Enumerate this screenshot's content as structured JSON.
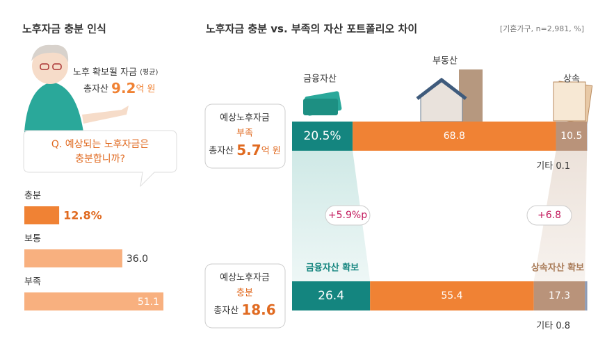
{
  "chart_data": [
    {
      "type": "hbar",
      "title": "노후자금 충분 인식",
      "callout": {
        "label": "노후 확보될 자금",
        "note": "(평균)",
        "total_label": "총자산",
        "value": 9.2,
        "unit": "억 원"
      },
      "question": [
        "Q. 예상되는 노후자금은",
        "충분합니까?"
      ],
      "categories": [
        "충분",
        "보통",
        "부족"
      ],
      "values": [
        12.8,
        36.0,
        51.1
      ],
      "value_labels": [
        "12.8%",
        "36.0",
        "51.1"
      ],
      "colors": [
        "#f08234",
        "#f8b07f",
        "#f8b07f"
      ]
    },
    {
      "type": "stacked_hbar",
      "title": "노후자금 충분 vs. 부족의 자산 포트폴리오 차이",
      "subtitle": "[기혼가구, n=2,981, %]",
      "groups": [
        {
          "line1": "예상노후자금",
          "status": "부족",
          "total_label": "총자산",
          "total": 5.7,
          "unit": "억 원"
        },
        {
          "line1": "예상노후자금",
          "status": "충분",
          "total_label": "총자산",
          "total": 18.6
        }
      ],
      "xlim": [
        0,
        100
      ],
      "series": [
        {
          "name": "금융자산",
          "color": "#14857f",
          "values": [
            20.5,
            26.4
          ],
          "value_labels": [
            "20.5%",
            "26.4"
          ]
        },
        {
          "name": "부동산",
          "color": "#f08234",
          "values": [
            68.8,
            55.4
          ]
        },
        {
          "name": "상속",
          "color": "#b9937a",
          "values": [
            10.5,
            17.3
          ]
        },
        {
          "name": "기타",
          "color": "#8d9bb5",
          "values": [
            0.1,
            0.8
          ]
        }
      ],
      "annotations": [
        "+5.9%p",
        "+6.8",
        "금융자산 확보",
        "상속자산 확보"
      ]
    }
  ]
}
